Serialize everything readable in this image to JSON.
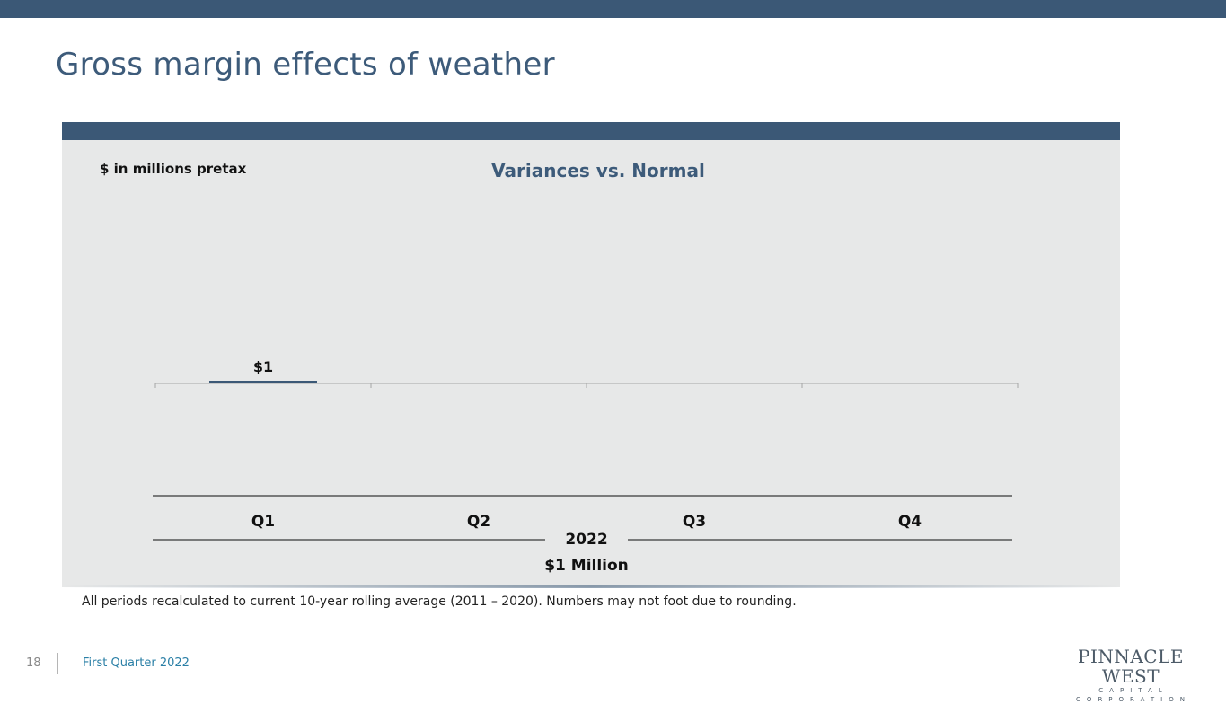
{
  "page": {
    "title": "Gross margin effects of weather",
    "footnote": "All periods recalculated to current 10-year rolling average (2011 – 2020). Numbers may not foot due to rounding.",
    "page_number": "18",
    "footer_text": "First Quarter 2022"
  },
  "logo": {
    "name": "PINNACLE WEST",
    "tagline": "CAPITAL CORPORATION"
  },
  "colors": {
    "bar": "#3b5876",
    "header": "#3b5876",
    "title": "#3d5b7a",
    "panel": "#e7e8e8"
  },
  "chart_data": {
    "type": "bar",
    "title": "Variances vs. Normal",
    "unit_label": "$ in millions pretax",
    "categories": [
      "Q1",
      "Q2",
      "Q3",
      "Q4"
    ],
    "values": [
      1,
      null,
      null,
      null
    ],
    "data_labels": [
      "$1",
      "",
      "",
      ""
    ],
    "group_label": "2022",
    "total_label": "$1 Million",
    "grid": false
  }
}
